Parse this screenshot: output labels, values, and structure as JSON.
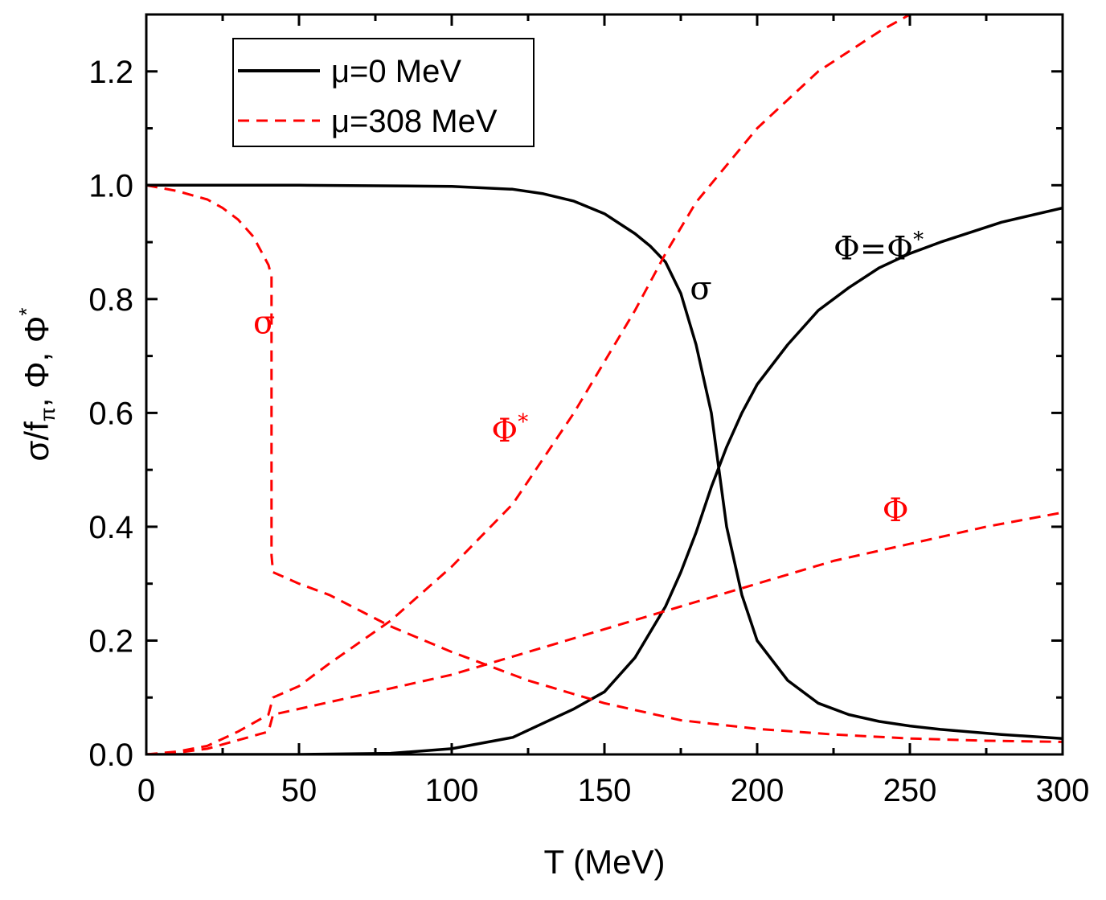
{
  "chart_data": {
    "type": "line",
    "xlabel": "T (MeV)",
    "ylabel": {
      "prefix": "σ/f",
      "sub": "π",
      "middle": ", Φ, Φ",
      "sup": "*"
    },
    "xlim": [
      0,
      300
    ],
    "ylim": [
      0,
      1.3
    ],
    "x_ticks": [
      0,
      50,
      100,
      150,
      200,
      250,
      300
    ],
    "y_ticks": [
      0.0,
      0.2,
      0.4,
      0.6,
      0.8,
      1.0,
      1.2
    ],
    "x_tick_labels": [
      "0",
      "50",
      "100",
      "150",
      "200",
      "250",
      "300"
    ],
    "y_tick_labels": [
      "0.0",
      "0.2",
      "0.4",
      "0.6",
      "0.8",
      "1.0",
      "1.2"
    ],
    "legend": {
      "position": "top-left",
      "entries": [
        {
          "label": "μ=0 MeV",
          "color": "#000000",
          "dash": "solid"
        },
        {
          "label": "μ=308 MeV",
          "color": "#ff0000",
          "dash": "dashed"
        }
      ]
    },
    "series": [
      {
        "id": "sigma-mu0",
        "color": "#000000",
        "dash": "solid",
        "x": [
          0,
          50,
          100,
          120,
          130,
          140,
          150,
          160,
          165,
          170,
          175,
          180,
          185,
          190,
          195,
          200,
          210,
          220,
          230,
          240,
          250,
          260,
          280,
          300
        ],
        "y": [
          1.0,
          1.0,
          0.998,
          0.993,
          0.985,
          0.972,
          0.95,
          0.915,
          0.893,
          0.865,
          0.81,
          0.72,
          0.6,
          0.4,
          0.28,
          0.2,
          0.13,
          0.09,
          0.07,
          0.058,
          0.05,
          0.044,
          0.035,
          0.028
        ]
      },
      {
        "id": "phi-mu0",
        "color": "#000000",
        "dash": "solid",
        "x": [
          0,
          50,
          80,
          100,
          120,
          140,
          150,
          160,
          170,
          175,
          180,
          185,
          190,
          195,
          200,
          210,
          220,
          230,
          240,
          250,
          260,
          280,
          300
        ],
        "y": [
          0.0,
          0.0,
          0.002,
          0.01,
          0.03,
          0.08,
          0.11,
          0.17,
          0.26,
          0.32,
          0.39,
          0.47,
          0.54,
          0.6,
          0.65,
          0.72,
          0.78,
          0.82,
          0.855,
          0.88,
          0.9,
          0.935,
          0.96
        ]
      },
      {
        "id": "sigma-mu308",
        "color": "#ff0000",
        "dash": "dashed",
        "x": [
          0,
          10,
          20,
          25,
          30,
          35,
          38,
          40,
          41,
          41,
          41.5,
          50,
          60,
          80,
          100,
          125,
          150,
          175,
          200,
          225,
          250,
          275,
          300
        ],
        "y": [
          1.0,
          0.99,
          0.975,
          0.96,
          0.94,
          0.91,
          0.88,
          0.86,
          0.84,
          0.35,
          0.32,
          0.3,
          0.28,
          0.225,
          0.18,
          0.13,
          0.09,
          0.06,
          0.045,
          0.035,
          0.028,
          0.024,
          0.022
        ]
      },
      {
        "id": "phistar-mu308",
        "color": "#ff0000",
        "dash": "dashed",
        "x": [
          0,
          10,
          20,
          30,
          40,
          41.5,
          50,
          60,
          80,
          100,
          120,
          140,
          160,
          170,
          180,
          200,
          220,
          240,
          250
        ],
        "y": [
          0.0,
          0.005,
          0.015,
          0.04,
          0.07,
          0.1,
          0.12,
          0.16,
          0.235,
          0.33,
          0.44,
          0.6,
          0.78,
          0.88,
          0.97,
          1.1,
          1.2,
          1.27,
          1.3
        ]
      },
      {
        "id": "phi-mu308",
        "color": "#ff0000",
        "dash": "dashed",
        "x": [
          0,
          10,
          20,
          30,
          40,
          41.5,
          50,
          75,
          100,
          125,
          150,
          175,
          200,
          225,
          250,
          275,
          300
        ],
        "y": [
          0.0,
          0.003,
          0.01,
          0.025,
          0.04,
          0.07,
          0.08,
          0.11,
          0.14,
          0.18,
          0.22,
          0.26,
          0.3,
          0.34,
          0.37,
          0.4,
          0.425
        ]
      }
    ],
    "annotations": [
      {
        "id": "sigma-red",
        "text": "σ",
        "sup": "",
        "color": "#ff0000",
        "x": 35,
        "y": 0.74
      },
      {
        "id": "phistar-red",
        "text": "Φ",
        "sup": "*",
        "color": "#ff0000",
        "x": 113,
        "y": 0.55
      },
      {
        "id": "phi-red",
        "text": "Φ",
        "sup": "",
        "color": "#ff0000",
        "x": 241,
        "y": 0.41
      },
      {
        "id": "sigma-black",
        "text": "σ",
        "sup": "",
        "color": "#000000",
        "x": 178,
        "y": 0.8
      },
      {
        "id": "phi-eq-black",
        "text": "Φ=Φ",
        "sup": "*",
        "color": "#000000",
        "x": 225,
        "y": 0.87
      }
    ],
    "grid": false
  }
}
